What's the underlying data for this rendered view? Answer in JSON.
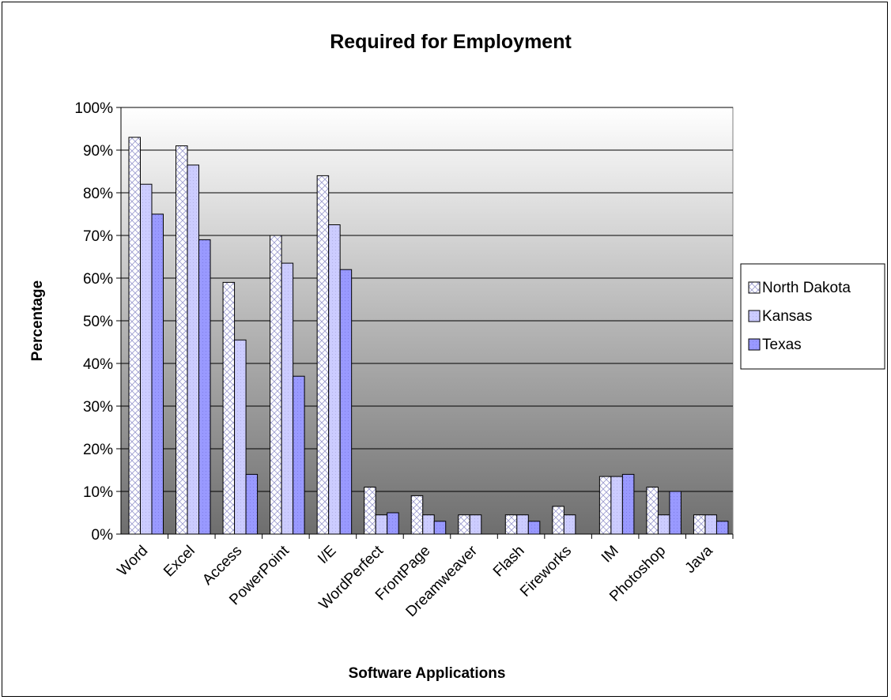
{
  "chart_data": {
    "type": "bar",
    "title": "Required for Employment",
    "xlabel": "Software Applications",
    "ylabel": "Percentage",
    "ylim": [
      0,
      100
    ],
    "yticks": [
      "0%",
      "10%",
      "20%",
      "30%",
      "40%",
      "50%",
      "60%",
      "70%",
      "80%",
      "90%",
      "100%"
    ],
    "categories": [
      "Word",
      "Excel",
      "Access",
      "PowerPoint",
      "I/E",
      "WordPerfect",
      "FrontPage",
      "Dreamweaver",
      "Flash",
      "Fireworks",
      "IM",
      "Photoshop",
      "Java"
    ],
    "series": [
      {
        "name": "North Dakota",
        "values": [
          93,
          91,
          59,
          70,
          84,
          11,
          9,
          4.5,
          4.5,
          6.5,
          13.5,
          11,
          4.5
        ]
      },
      {
        "name": "Kansas",
        "values": [
          82,
          86.5,
          45.5,
          63.5,
          72.5,
          4.5,
          4.5,
          4.5,
          4.5,
          4.5,
          13.5,
          4.5,
          4.5
        ]
      },
      {
        "name": "Texas",
        "values": [
          75,
          69,
          14,
          37,
          62,
          5,
          3,
          0,
          3,
          0,
          14,
          10,
          3
        ]
      }
    ],
    "legend_position": "right",
    "grid": true
  }
}
